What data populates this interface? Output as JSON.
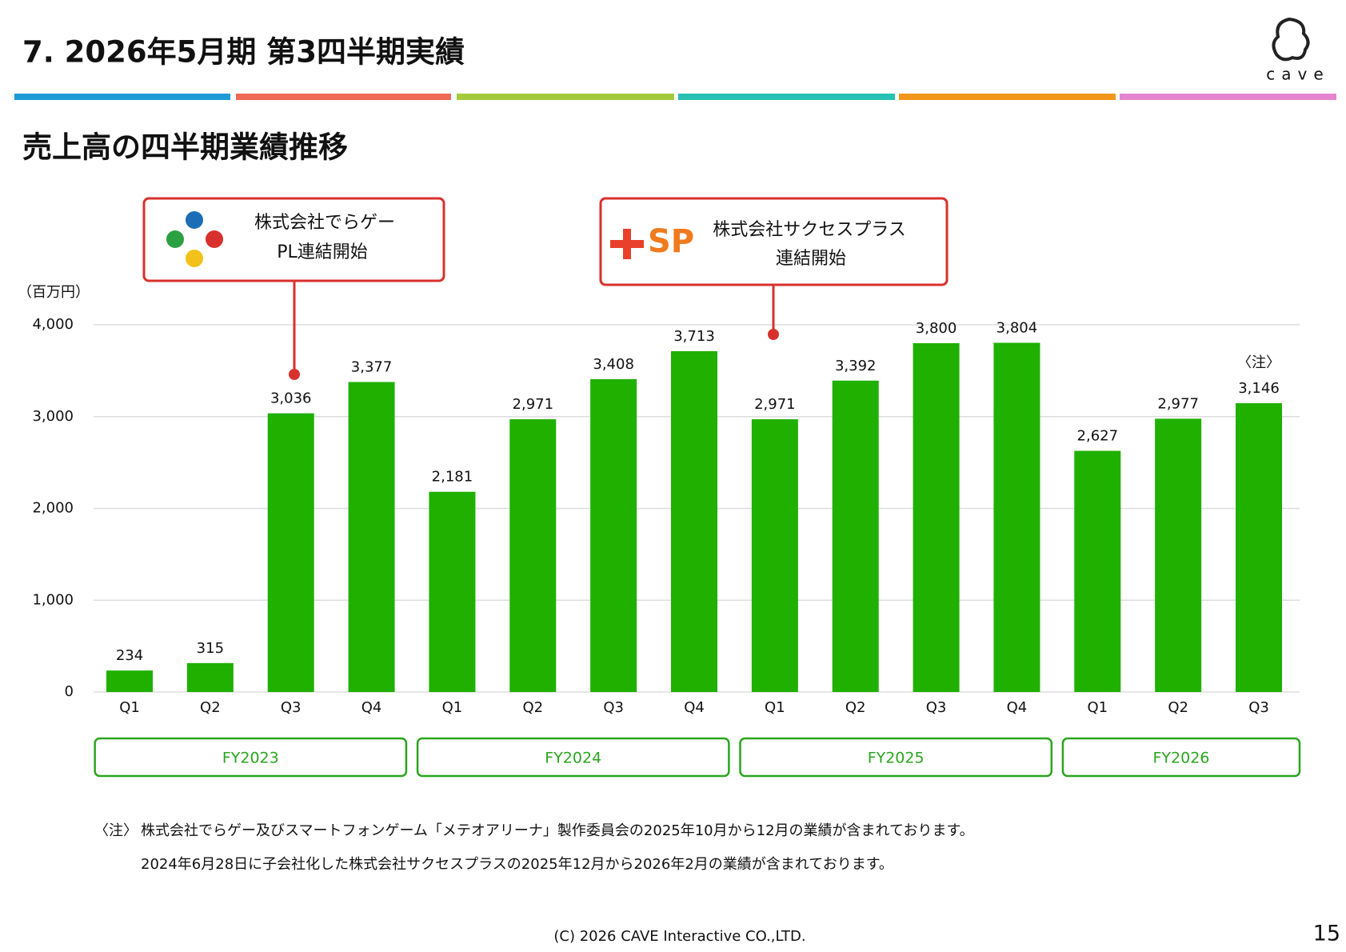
{
  "header": {
    "title": "7.  2026年5月期  第3四半期実績",
    "logo_text": "cave"
  },
  "chart_data": {
    "type": "bar",
    "title": "売上高の四半期業績推移",
    "y_label": "（百万円）",
    "categories": [
      "Q1",
      "Q2",
      "Q3",
      "Q4",
      "Q1",
      "Q2",
      "Q3",
      "Q4",
      "Q1",
      "Q2",
      "Q3",
      "Q4",
      "Q1",
      "Q2",
      "Q3"
    ],
    "values": [
      234,
      315,
      3036,
      3377,
      2181,
      2971,
      3408,
      3713,
      2971,
      3392,
      3800,
      3804,
      2627,
      2977,
      3146
    ],
    "value_labels": [
      "234",
      "315",
      "3,036",
      "3,377",
      "2,181",
      "2,971",
      "3,408",
      "3,713",
      "2,971",
      "3,392",
      "3,800",
      "3,804",
      "2,627",
      "2,977",
      "3,146"
    ],
    "color": "#1fb000",
    "ylim": [
      0,
      4000
    ],
    "yticks": [
      0,
      {
        "value": 1000,
        "label": "1,000"
      },
      {
        "value": 2000,
        "label": "2,000"
      },
      {
        "value": 3000,
        "label": "3,000"
      },
      {
        "value": 4000,
        "label": "4,000"
      }
    ],
    "grid": true,
    "fiscal_years": [
      "FY2023",
      "FY2024",
      "FY2025",
      "FY2026"
    ],
    "note_marker": "〈注〉"
  },
  "callouts": [
    {
      "lines": [
        "株式会社でらゲー",
        "PL連結開始"
      ]
    },
    {
      "logo_text": "SP",
      "lines": [
        "株式会社サクセスプラス",
        "連結開始"
      ]
    }
  ],
  "footnotes": {
    "marker": "〈注〉",
    "lines": [
      "株式会社でらゲー及びスマートフォンゲーム「メテオアリーナ」製作委員会の2025年10月から12月の業績が含まれております。",
      "2024年6月28日に子会社化した株式会社サクセスプラスの2025年12月から2026年2月の業績が含まれております。"
    ]
  },
  "footer": {
    "copyright": "(C) 2026 CAVE Interactive CO.,LTD.",
    "page_number": "15"
  }
}
